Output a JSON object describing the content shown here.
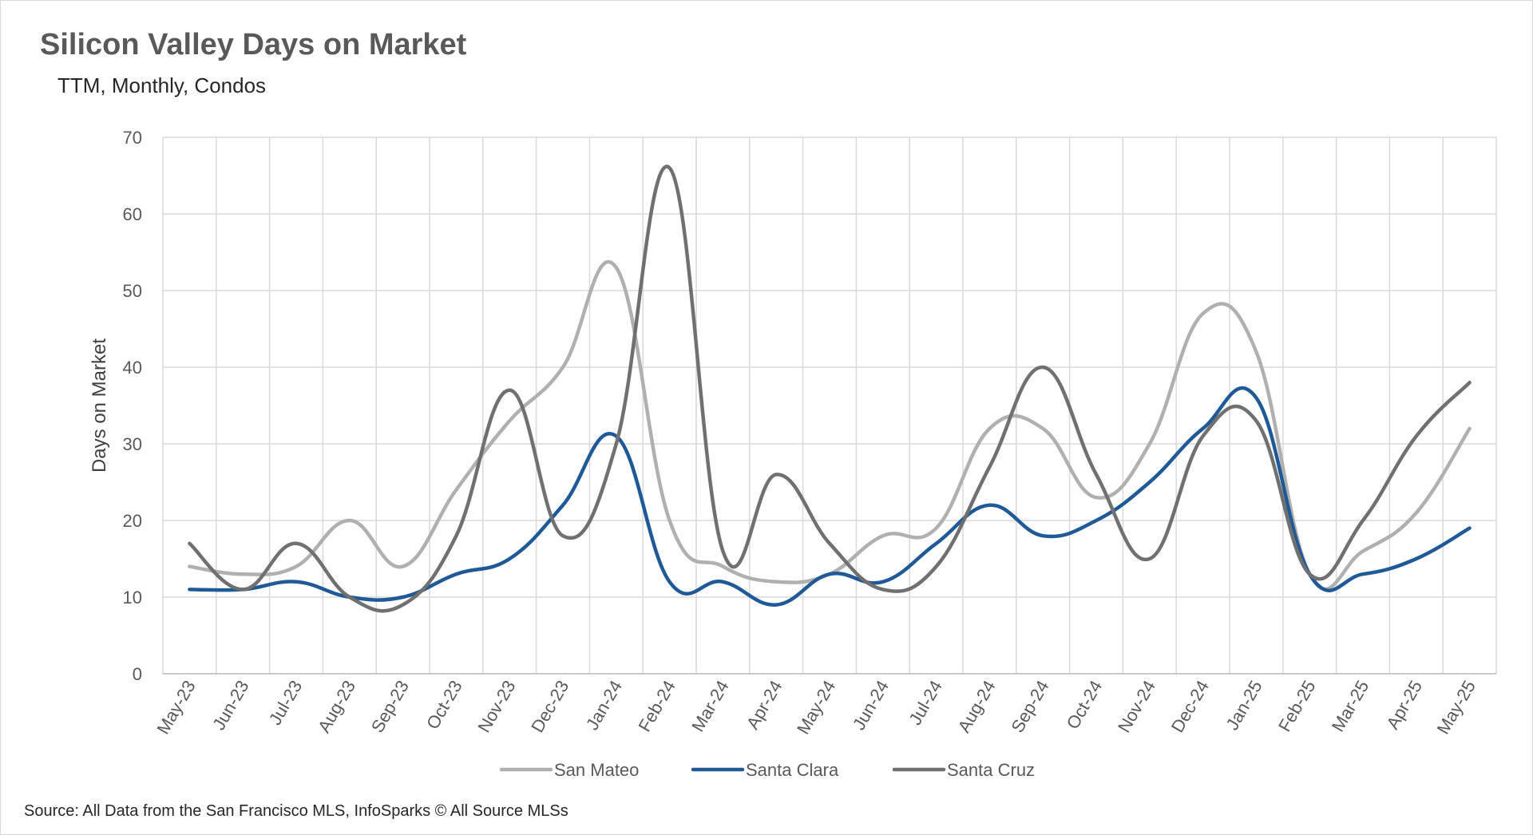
{
  "chart_data": {
    "type": "line",
    "title": "Silicon Valley Days on Market",
    "subtitle": "TTM, Monthly, Condos",
    "ylabel": "Days on Market",
    "xlabel": "",
    "ylim": [
      0,
      70
    ],
    "yticks": [
      0,
      10,
      20,
      30,
      40,
      50,
      60,
      70
    ],
    "grid": true,
    "legend_position": "bottom",
    "categories": [
      "May-23",
      "Jun-23",
      "Jul-23",
      "Aug-23",
      "Sep-23",
      "Oct-23",
      "Nov-23",
      "Dec-23",
      "Jan-24",
      "Feb-24",
      "Mar-24",
      "Apr-24",
      "May-24",
      "Jun-24",
      "Jul-24",
      "Aug-24",
      "Sep-24",
      "Oct-24",
      "Nov-24",
      "Dec-24",
      "Jan-25",
      "Feb-25",
      "Mar-25",
      "Apr-25",
      "May-25"
    ],
    "series": [
      {
        "name": "San Mateo",
        "color": "#b0b0b0",
        "values": [
          14,
          13,
          14,
          20,
          14,
          24,
          33,
          40,
          53,
          20,
          14,
          12,
          13,
          18,
          19,
          32,
          32,
          23,
          30,
          47,
          42,
          13,
          16,
          21,
          32
        ]
      },
      {
        "name": "Santa Clara",
        "color": "#1f5a96",
        "values": [
          11,
          11,
          12,
          10,
          10,
          13,
          15,
          22,
          31,
          12,
          12,
          9,
          13,
          12,
          17,
          22,
          18,
          20,
          25,
          32,
          36,
          13,
          13,
          15,
          19
        ]
      },
      {
        "name": "Santa Cruz",
        "color": "#707070",
        "values": [
          17,
          11,
          17,
          10,
          9,
          18,
          37,
          18,
          30,
          66,
          16,
          26,
          17,
          11,
          14,
          27,
          40,
          26,
          15,
          31,
          33,
          13,
          20,
          31,
          38
        ]
      }
    ],
    "source": "Source: All Data from the San Francisco MLS, InfoSparks © All Source MLSs"
  }
}
